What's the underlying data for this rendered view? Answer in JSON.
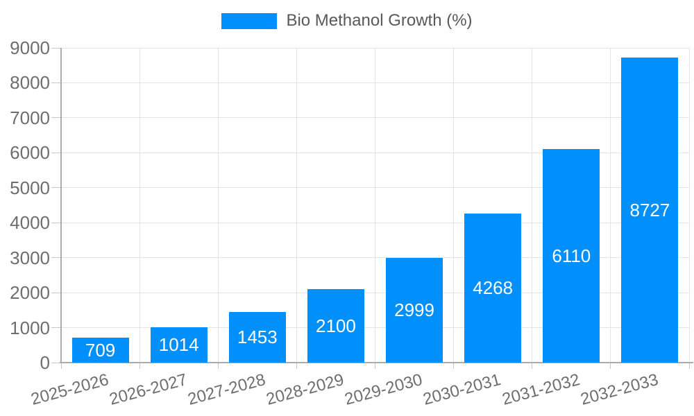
{
  "legend": {
    "label": "Bio Methanol Growth (%)"
  },
  "chart_data": {
    "type": "bar",
    "title": "",
    "categories": [
      "2025-2026",
      "2026-2027",
      "2027-2028",
      "2028-2029",
      "2029-2030",
      "2030-2031",
      "2031-2032",
      "2032-2033"
    ],
    "series": [
      {
        "name": "Bio Methanol Growth (%)",
        "values": [
          709,
          1014,
          1453,
          2100,
          2999,
          4268,
          6110,
          8727
        ]
      }
    ],
    "value_labels": [
      "709",
      "1014",
      "1453",
      "2100",
      "2999",
      "4268",
      "6110",
      "8727"
    ],
    "xlabel": "",
    "ylabel": "",
    "ylim": [
      0,
      9000
    ],
    "yticks": [
      0,
      1000,
      2000,
      3000,
      4000,
      5000,
      6000,
      7000,
      8000,
      9000
    ],
    "grid": true,
    "legend_position": "top",
    "x_label_rotation_deg": -15,
    "colors": {
      "bar": "#008FFB",
      "value_label": "#FFFFFF",
      "gridline": "#E3E3E3",
      "axis": "#ABABAB",
      "tick": "#C8C8C8",
      "tick_label": "#6E6E6E",
      "legend_text": "#595959",
      "background": "#FFFFFF"
    }
  }
}
